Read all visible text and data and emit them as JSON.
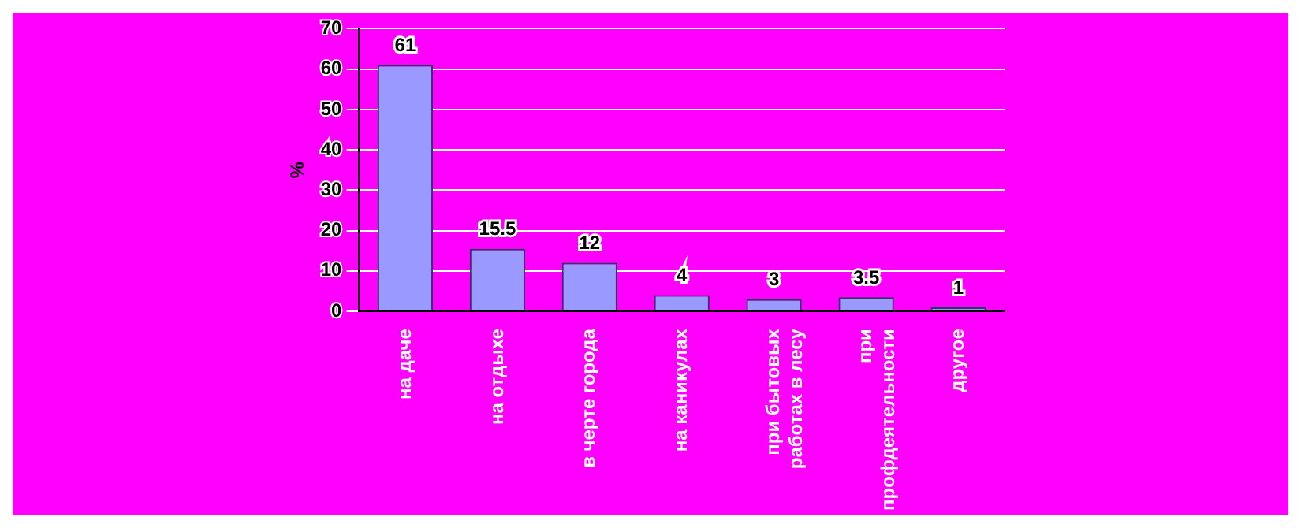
{
  "chart_data": {
    "type": "bar",
    "ylabel": "%",
    "categories": [
      "на даче",
      "на отдыхе",
      "в черте города",
      "на каникулах",
      "при бытовых работах в лесу",
      "при профдеятельности",
      "другое"
    ],
    "values": [
      61,
      15.5,
      12,
      4,
      3,
      3.5,
      1
    ],
    "color": "#9999ff",
    "ylim": [
      0,
      70
    ],
    "yticks": [
      0,
      10,
      20,
      30,
      40,
      50,
      60,
      70
    ],
    "grid": "y",
    "data_labels": true
  }
}
